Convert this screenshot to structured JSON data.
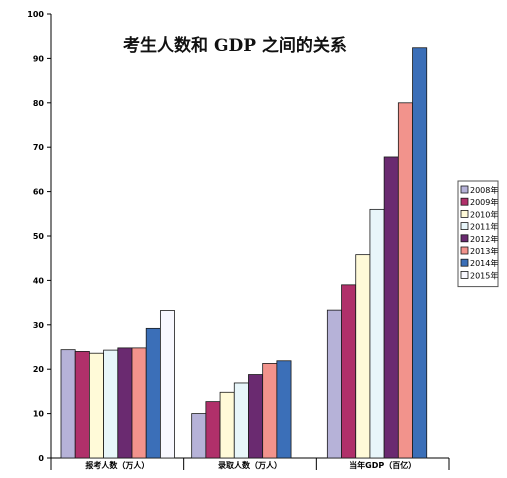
{
  "chart_data": {
    "type": "bar",
    "title": "考生人数和 GDP 之间的关系",
    "categories": [
      "报考人数（万人）",
      "录取人数（万人）",
      "当年GDP（百亿）"
    ],
    "series": [
      {
        "name": "2008年",
        "color": "#b6b2d8",
        "values": [
          24.4,
          10,
          33.3
        ]
      },
      {
        "name": "2009年",
        "color": "#b0306a",
        "values": [
          24.0,
          12.7,
          39.0
        ]
      },
      {
        "name": "2010年",
        "color": "#fffad8",
        "values": [
          23.6,
          14.8,
          45.8
        ]
      },
      {
        "name": "2011年",
        "color": "#e8f6fa",
        "values": [
          24.3,
          16.9,
          56.0
        ]
      },
      {
        "name": "2012年",
        "color": "#6a2a70",
        "values": [
          24.8,
          18.8,
          67.8
        ]
      },
      {
        "name": "2013年",
        "color": "#f2938c",
        "values": [
          24.8,
          21.3,
          80.0
        ]
      },
      {
        "name": "2014年",
        "color": "#3b6fb8",
        "values": [
          29.2,
          21.9,
          92.4
        ]
      },
      {
        "name": "2015年",
        "color": "#f8f8ff",
        "values": [
          33.2,
          null,
          null
        ]
      }
    ],
    "ylim": [
      0,
      100
    ],
    "yticks": [
      0,
      10,
      20,
      30,
      40,
      50,
      60,
      70,
      80,
      90,
      100
    ],
    "grid": false,
    "legend_position": "right"
  }
}
